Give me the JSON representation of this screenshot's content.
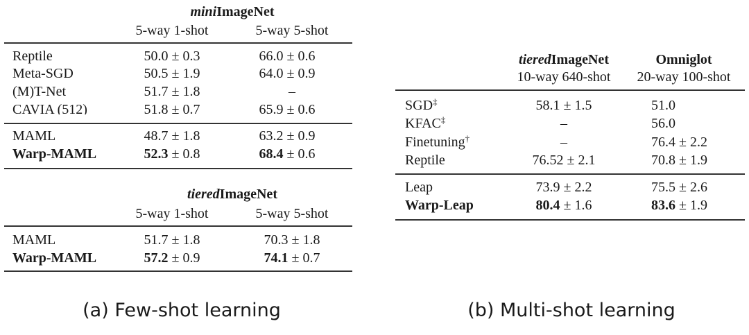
{
  "panel_a": {
    "table1": {
      "dataset_italic": "mini",
      "dataset_rest": "ImageNet",
      "col1": "5-way 1-shot",
      "col2": "5-way 5-shot",
      "rows": [
        {
          "method": "Reptile",
          "v1": "50.0 ± 0.3",
          "v2": "66.0 ± 0.6"
        },
        {
          "method": "Meta-SGD",
          "v1": "50.5 ± 1.9",
          "v2": "64.0 ± 0.9"
        },
        {
          "method": "(M)T-Net",
          "v1": "51.7 ± 1.8",
          "v2": "–"
        },
        {
          "method": "CAVIA (512)",
          "v1": "51.8 ± 0.7",
          "v2": "65.9 ± 0.6"
        },
        {
          "method": "MAML",
          "v1": "48.7 ± 1.8",
          "v2": "63.2 ± 0.9"
        },
        {
          "method": "Warp-MAML",
          "v1_bold": "52.3",
          "v1_rest": " ± 0.8",
          "v2_bold": "68.4",
          "v2_rest": " ± 0.6"
        }
      ]
    },
    "table2": {
      "dataset_italic": "tiered",
      "dataset_rest": "ImageNet",
      "col1": "5-way 1-shot",
      "col2": "5-way 5-shot",
      "rows": [
        {
          "method": "MAML",
          "v1": "51.7 ± 1.8",
          "v2": "70.3 ± 1.8"
        },
        {
          "method": "Warp-MAML",
          "v1_bold": "57.2",
          "v1_rest": " ± 0.9",
          "v2_bold": "74.1",
          "v2_rest": " ± 0.7"
        }
      ]
    },
    "caption": "(a) Few-shot learning"
  },
  "panel_b": {
    "col1_italic": "tiered",
    "col1_rest": "ImageNet",
    "col1_sub": "10-way 640-shot",
    "col2": "Omniglot",
    "col2_sub": "20-way 100-shot",
    "rows": [
      {
        "method": "SGD",
        "mark": "‡",
        "v1": "58.1 ± 1.5",
        "v2": "51.0"
      },
      {
        "method": "KFAC",
        "mark": "‡",
        "v1": "–",
        "v2": "56.0"
      },
      {
        "method": "Finetuning",
        "mark": "†",
        "v1": "–",
        "v2": "76.4 ± 2.2"
      },
      {
        "method": "Reptile",
        "mark": "",
        "v1": "76.52 ± 2.1",
        "v2": "70.8 ± 1.9"
      },
      {
        "method": "Leap",
        "mark": "",
        "v1": "73.9 ± 2.2",
        "v2": "75.5 ± 2.6"
      },
      {
        "method": "Warp-Leap",
        "mark": "",
        "v1_bold": "80.4",
        "v1_rest": " ± 1.6",
        "v2_bold": "83.6",
        "v2_rest": " ± 1.9"
      }
    ],
    "caption": "(b) Multi-shot learning"
  }
}
